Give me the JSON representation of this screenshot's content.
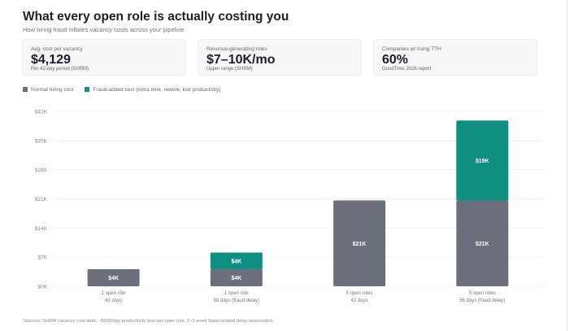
{
  "title": "What every open role is actually costing you",
  "subtitle": "How hiring fraud inflates vacancy costs across your pipeline",
  "cards": [
    {
      "label": "Avg. cost per vacancy",
      "value": "$4,129",
      "note": "Per 42-day period (SHRM)"
    },
    {
      "label": "Revenue-generating roles",
      "value": "$7–10K/mo",
      "note": "Upper range (SHRM)"
    },
    {
      "label": "Companies w/ rising TTH",
      "value": "60%",
      "note": "GoodTime 2026 report"
    }
  ],
  "colors": {
    "normal": "#6b6e7b",
    "fraud": "#0f8f80"
  },
  "chart_data": {
    "type": "bar",
    "stacked": true,
    "categories": [
      [
        "1 open role",
        "42 days"
      ],
      [
        "1 open role",
        "56 days (fraud delay)"
      ],
      [
        "5 open roles",
        "42 days"
      ],
      [
        "5 open roles",
        "56 days (fraud delay)"
      ]
    ],
    "series": [
      {
        "name": "Normal hiring cost",
        "values": [
          4.1,
          4.1,
          20.6,
          20.6
        ],
        "labels": [
          "$4K",
          "$4K",
          "$21K",
          "$21K"
        ]
      },
      {
        "name": "Fraud-added cost (extra time, rework, lost productivity)",
        "values": [
          0,
          4.0,
          0,
          19.2
        ],
        "labels": [
          "",
          "$4K",
          "",
          "$19K"
        ]
      }
    ],
    "yticks": [
      "$0K",
      "$7K",
      "$14K",
      "$21K",
      "$28K",
      "$35K",
      "$42K"
    ],
    "ytick_values": [
      0,
      7,
      14,
      21,
      28,
      35,
      42
    ],
    "ylim": [
      0,
      42
    ],
    "grid": true,
    "legend": "top-left"
  },
  "sources": "Sources: SHRM vacancy cost data, ~$500/day productivity loss per open role, 2–3 week fraud-related delay assumption."
}
